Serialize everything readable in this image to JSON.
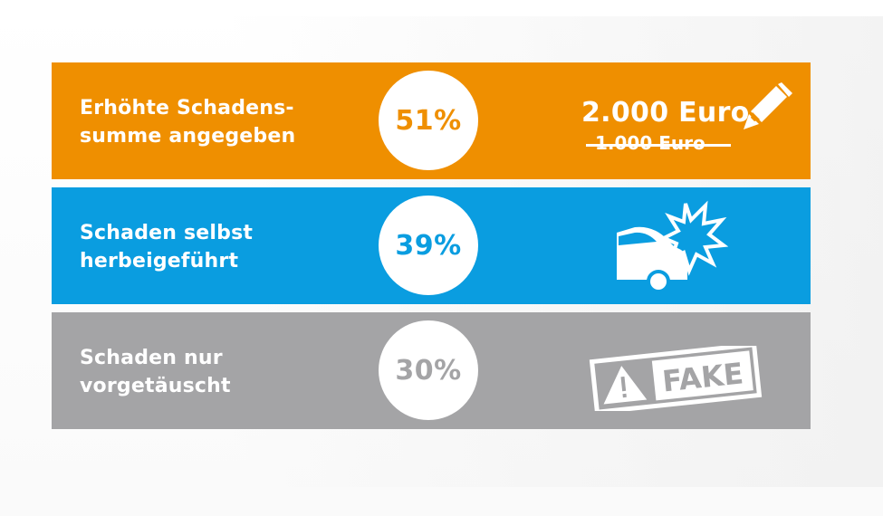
{
  "rows": [
    {
      "label_line1": "Erhöhte Schadens-",
      "label_line2": "summe angegeben",
      "percent": "51%",
      "amount_new": "2.000 Euro",
      "amount_old": "1.000 Euro",
      "icon": "pencil-icon",
      "color": "#ef8f00"
    },
    {
      "label_line1": "Schaden selbst",
      "label_line2": "herbeigeführt",
      "percent": "39%",
      "icon": "car-crash-icon",
      "color": "#0a9de0"
    },
    {
      "label_line1": "Schaden nur",
      "label_line2": "vorgetäuscht",
      "percent": "30%",
      "icon": "fake-stamp-icon",
      "stamp_text": "FAKE",
      "color": "#a4a4a6"
    }
  ]
}
